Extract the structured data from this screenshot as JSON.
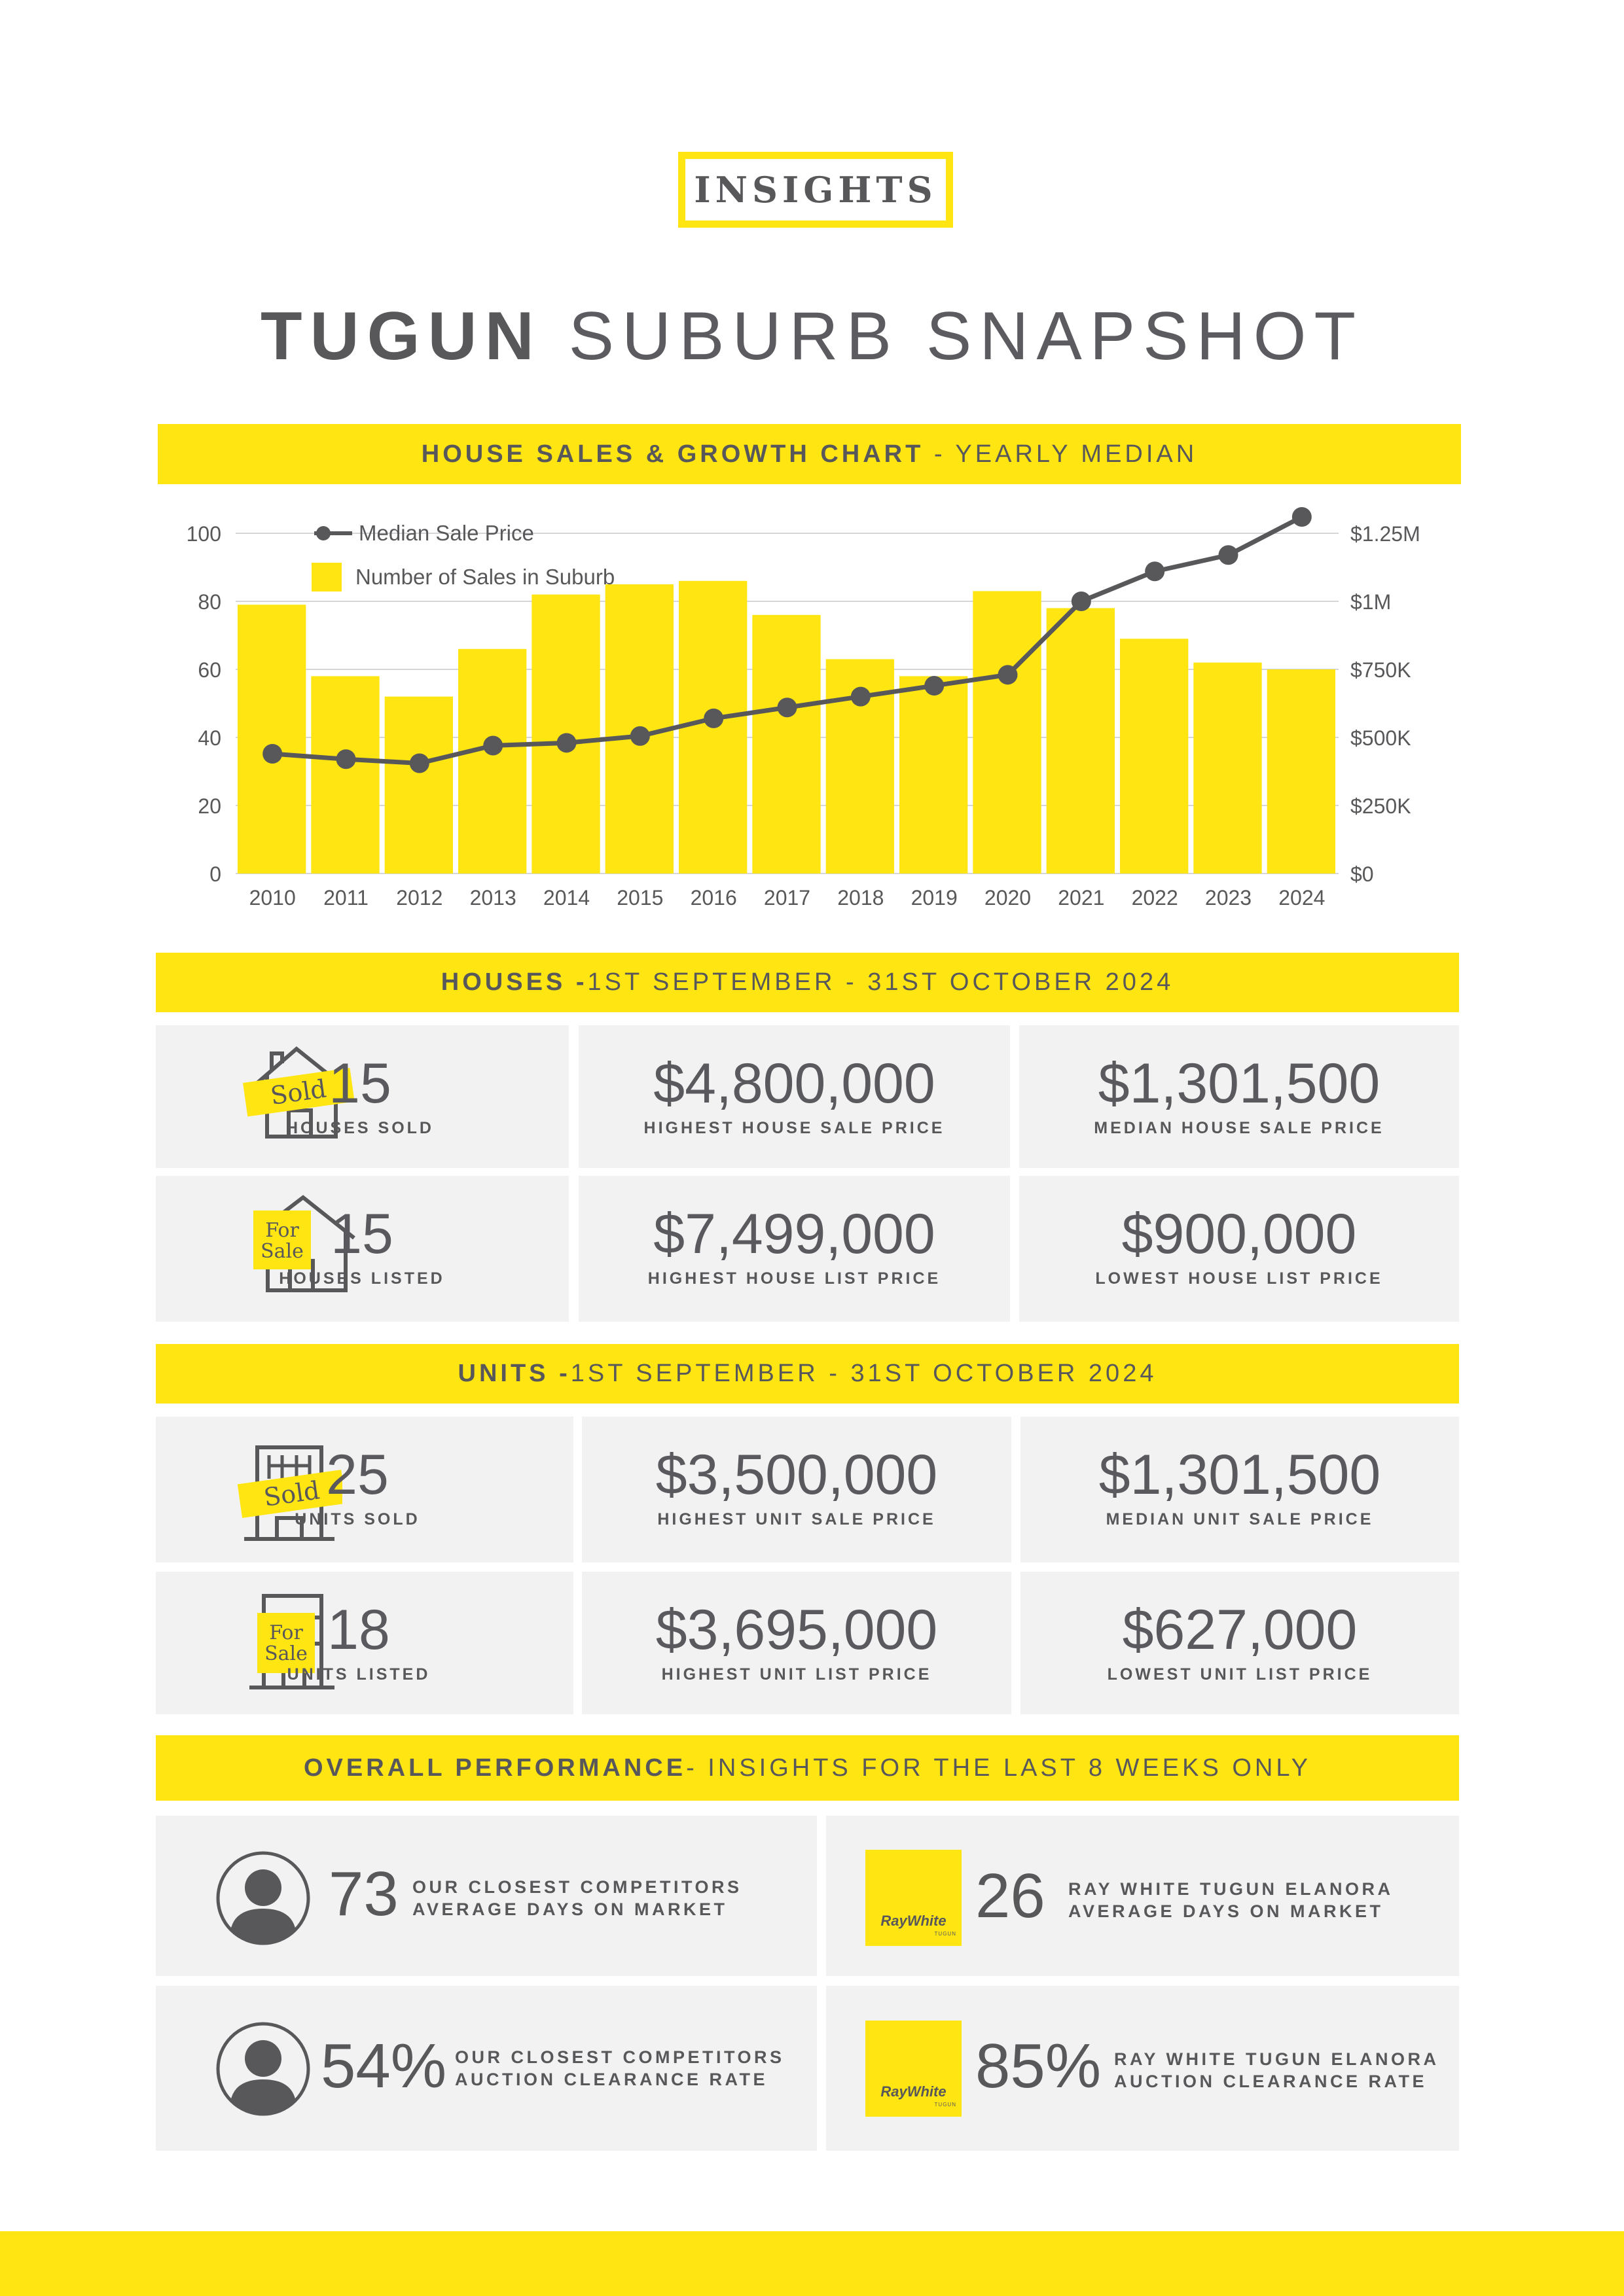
{
  "badge": "INSIGHTS",
  "title": {
    "bold": "TUGUN",
    "light": "SUBURB SNAPSHOT"
  },
  "sections": {
    "chart": {
      "bold": "HOUSE SALES & GROWTH CHART",
      "light": " - YEARLY MEDIAN"
    },
    "houses": {
      "bold": "HOUSES -",
      "light": " 1ST SEPTEMBER - 31ST OCTOBER 2024"
    },
    "units": {
      "bold": "UNITS -",
      "light": " 1ST SEPTEMBER - 31ST OCTOBER 2024"
    },
    "performance": {
      "bold": "OVERALL PERFORMANCE",
      "light": "- INSIGHTS FOR THE LAST 8 WEEKS ONLY"
    }
  },
  "chart_data": {
    "type": "bar",
    "categories": [
      "2010",
      "2011",
      "2012",
      "2013",
      "2014",
      "2015",
      "2016",
      "2017",
      "2018",
      "2019",
      "2020",
      "2021",
      "2022",
      "2023",
      "2024"
    ],
    "series": [
      {
        "name": "Number of Sales in Suburb",
        "type": "bar",
        "axis": "left",
        "values": [
          79,
          58,
          52,
          66,
          82,
          85,
          86,
          76,
          63,
          58,
          83,
          78,
          69,
          62,
          60
        ]
      },
      {
        "name": "Median Sale Price",
        "type": "line",
        "axis": "right",
        "values": [
          440000,
          420000,
          405000,
          470000,
          480000,
          505000,
          570000,
          610000,
          650000,
          690000,
          730000,
          1000000,
          1110000,
          1170000,
          1310000
        ]
      }
    ],
    "ylim": [
      0,
      100
    ],
    "y_ticks": [
      "0",
      "20",
      "40",
      "60",
      "80",
      "100"
    ],
    "y2lim": [
      0,
      1250000
    ],
    "y2_ticks": [
      "$0",
      "$250K",
      "$500K",
      "$750K",
      "$1M",
      "$1.25M"
    ],
    "grid": true,
    "legend": "top-left",
    "colors": {
      "bar": "#ffe512",
      "line": "#58585b"
    }
  },
  "houses": [
    {
      "value": "15",
      "label": "HOUSES SOLD",
      "sign": "Sold"
    },
    {
      "value": "$4,800,000",
      "label": "HIGHEST HOUSE SALE PRICE"
    },
    {
      "value": "$1,301,500",
      "label": "MEDIAN HOUSE SALE PRICE"
    },
    {
      "value": "15",
      "label": "HOUSES LISTED",
      "sign1": "For",
      "sign2": "Sale"
    },
    {
      "value": "$7,499,000",
      "label": "HIGHEST HOUSE LIST PRICE"
    },
    {
      "value": "$900,000",
      "label": "LOWEST HOUSE LIST PRICE"
    }
  ],
  "units": [
    {
      "value": "25",
      "label": "UNITS SOLD",
      "sign": "Sold"
    },
    {
      "value": "$3,500,000",
      "label": "HIGHEST UNIT SALE PRICE"
    },
    {
      "value": "$1,301,500",
      "label": "MEDIAN UNIT SALE PRICE"
    },
    {
      "value": "18",
      "label": "UNITS LISTED",
      "sign1": "For",
      "sign2": "Sale"
    },
    {
      "value": "$3,695,000",
      "label": "HIGHEST UNIT LIST PRICE"
    },
    {
      "value": "$627,000",
      "label": "LOWEST UNIT LIST PRICE"
    }
  ],
  "performance": [
    {
      "value": "73",
      "line1": "OUR CLOSEST COMPETITORS",
      "line2": "AVERAGE DAYS ON MARKET"
    },
    {
      "value": "26",
      "line1": "RAY WHITE TUGUN ELANORA",
      "line2": "AVERAGE DAYS ON MARKET",
      "logo": "RayWhite",
      "logo_sub": "TUGUN"
    },
    {
      "value": "54%",
      "line1": "OUR CLOSEST COMPETITORS",
      "line2": "AUCTION CLEARANCE RATE"
    },
    {
      "value": "85%",
      "line1": "RAY WHITE TUGUN ELANORA",
      "line2": "AUCTION CLEARANCE RATE",
      "logo": "RayWhite",
      "logo_sub": "TUGUN"
    }
  ],
  "icons": [
    "house-sold-icon",
    "house-for-sale-icon",
    "unit-sold-icon",
    "unit-for-sale-icon",
    "person-icon",
    "ray-white-logo-icon"
  ]
}
